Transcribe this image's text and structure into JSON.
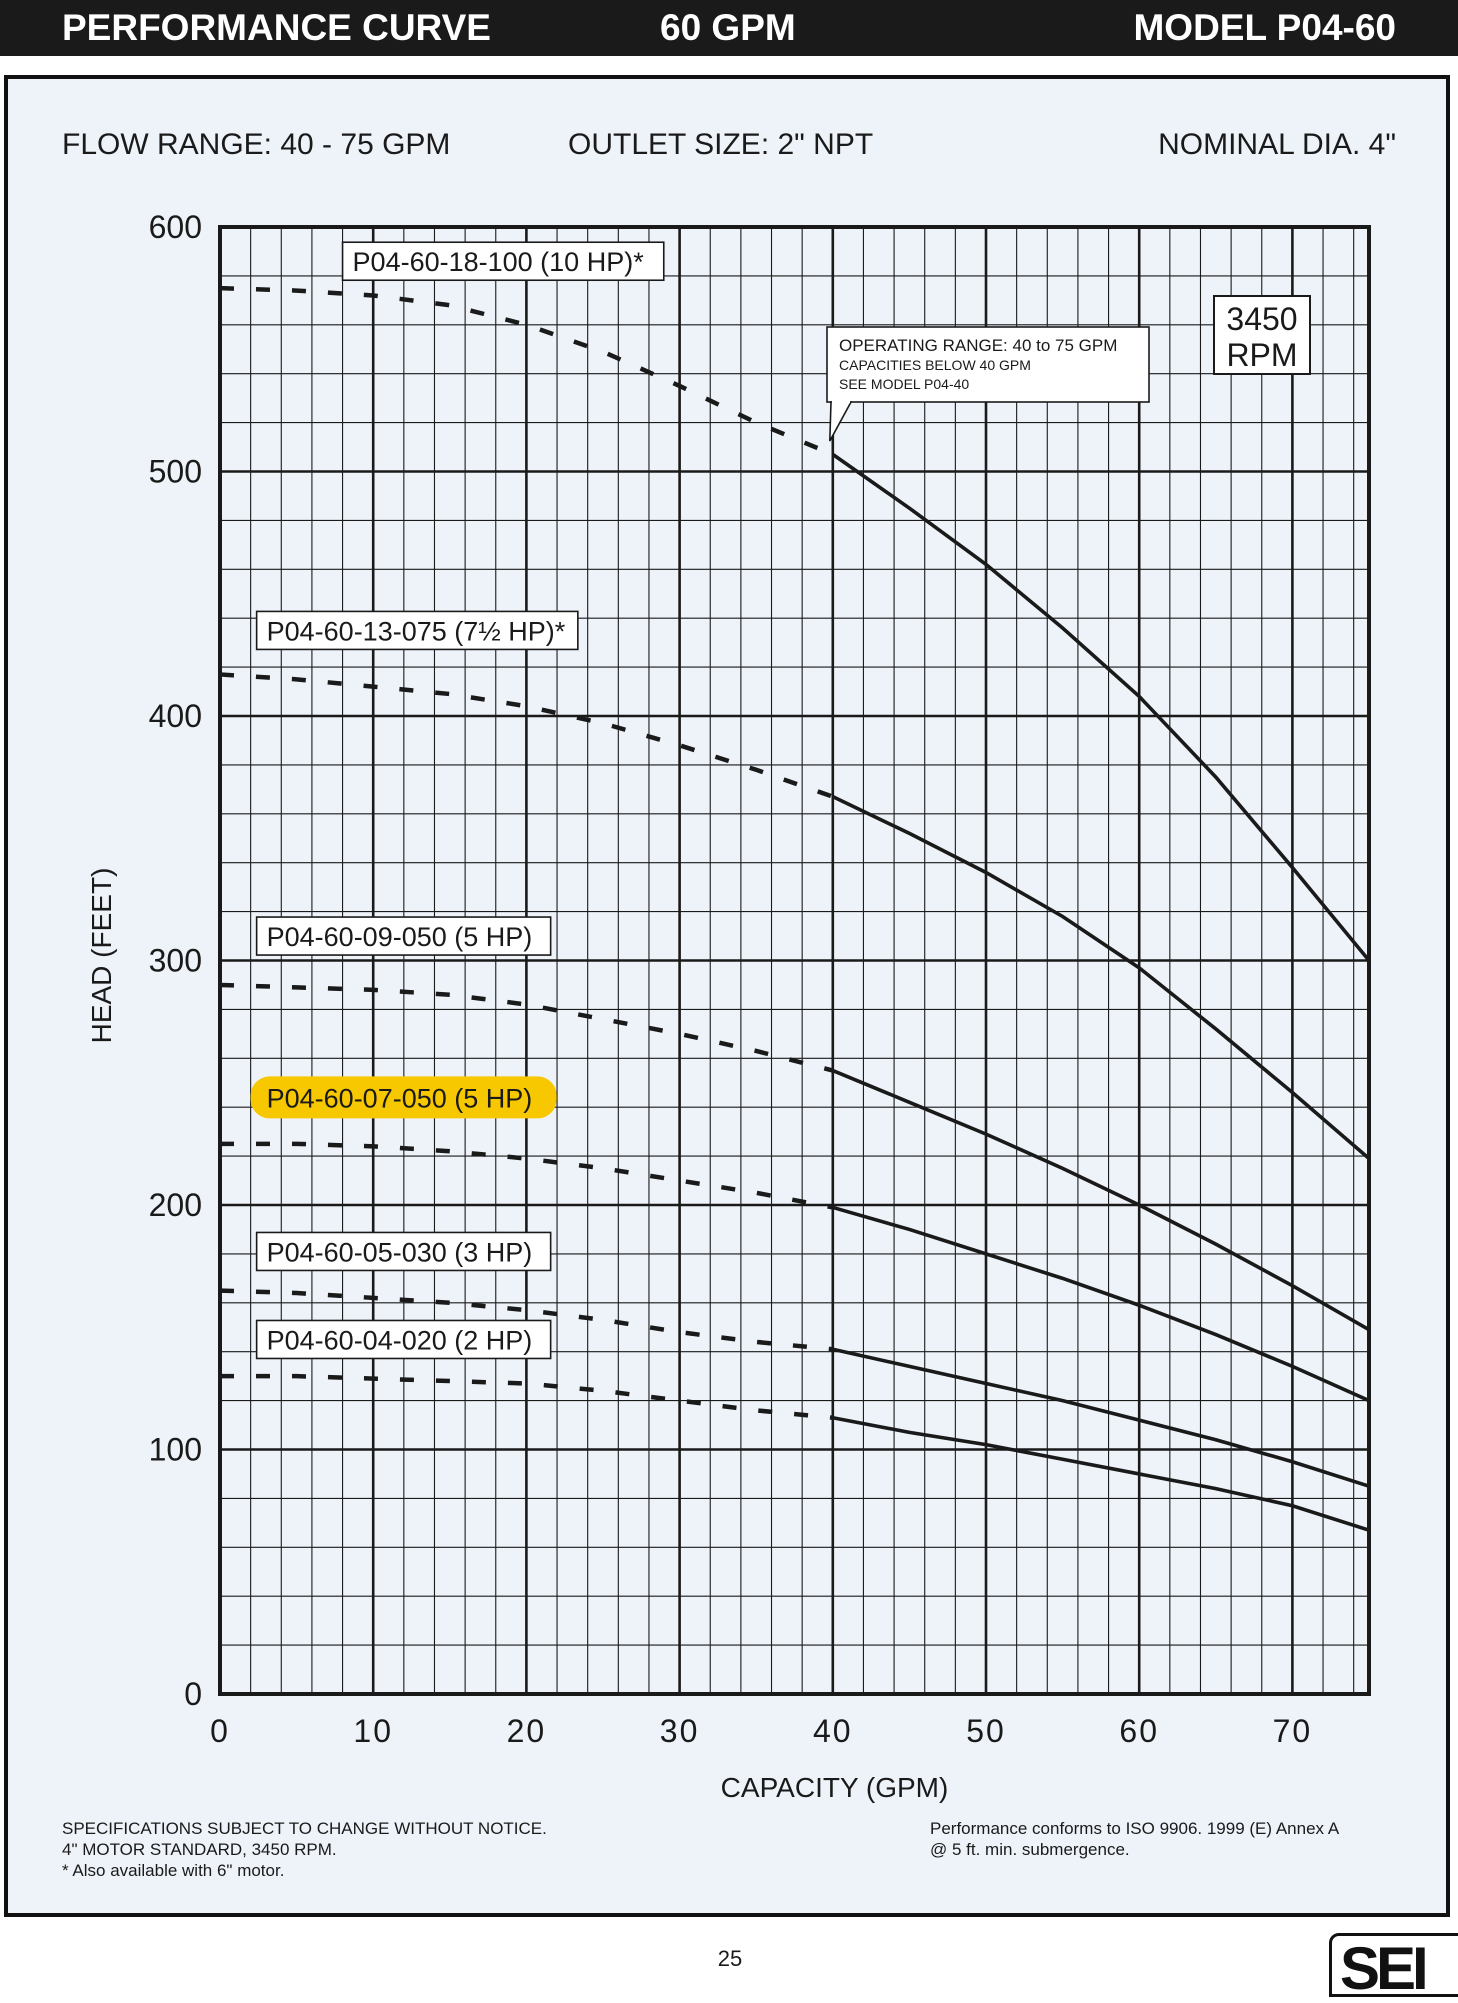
{
  "header": {
    "left": "PERFORMANCE CURVE",
    "center": "60 GPM",
    "right": "MODEL  P04-60"
  },
  "info": {
    "flow_range": "FLOW RANGE: 40 - 75 GPM",
    "outlet": "OUTLET SIZE: 2\" NPT",
    "diameter": "NOMINAL DIA. 4\""
  },
  "colors": {
    "header_bg": "#1a1a1a",
    "panel_bg": "#edf3f9",
    "line": "#1a1a1a",
    "highlight": "#f7c800"
  },
  "chart_data": {
    "type": "line",
    "xlabel": "CAPACITY (GPM)",
    "ylabel": "HEAD (FEET)",
    "xlim": [
      0,
      75
    ],
    "ylim": [
      0,
      600
    ],
    "x_ticks": [
      0,
      10,
      20,
      30,
      40,
      50,
      60,
      70
    ],
    "y_ticks": [
      0,
      100,
      200,
      300,
      400,
      500,
      600
    ],
    "x_tick_labels": [
      "0",
      "10",
      "20",
      "30",
      "40",
      "50",
      "60",
      "70"
    ],
    "y_tick_labels": [
      "0",
      "100",
      "200",
      "300",
      "400",
      "500",
      "600"
    ],
    "grid": true,
    "rpm_box": [
      "3450",
      "RPM"
    ],
    "annotation": {
      "lines": [
        "OPERATING RANGE: 40 to 75 GPM",
        "CAPACITIES BELOW 40 GPM",
        "SEE MODEL P04-40"
      ],
      "points_to": [
        40,
        510
      ]
    },
    "operating_range_start": 40,
    "series": [
      {
        "name": "P04-60-18-100 (10 HP)*",
        "highlighted": false,
        "label_anchor": [
          8,
          586
        ],
        "x": [
          0,
          5,
          10,
          15,
          20,
          25,
          30,
          35,
          40,
          45,
          50,
          55,
          60,
          65,
          70,
          75
        ],
        "y": [
          575,
          574,
          572,
          568,
          560,
          549,
          535,
          520,
          507,
          485,
          462,
          436,
          408,
          375,
          338,
          300
        ]
      },
      {
        "name": "P04-60-13-075 (7½ HP)*",
        "highlighted": false,
        "label_anchor": [
          2,
          435
        ],
        "x": [
          0,
          5,
          10,
          15,
          20,
          25,
          30,
          35,
          40,
          45,
          50,
          55,
          60,
          65,
          70,
          75
        ],
        "y": [
          417,
          415,
          412,
          409,
          404,
          397,
          388,
          378,
          367,
          352,
          336,
          318,
          297,
          272,
          246,
          219
        ]
      },
      {
        "name": "P04-60-09-050 (5 HP)",
        "highlighted": false,
        "label_anchor": [
          2,
          310
        ],
        "x": [
          0,
          5,
          10,
          15,
          20,
          25,
          30,
          35,
          40,
          45,
          50,
          55,
          60,
          65,
          70,
          75
        ],
        "y": [
          290,
          289,
          288,
          286,
          282,
          276,
          270,
          263,
          255,
          242,
          229,
          215,
          200,
          184,
          167,
          149
        ]
      },
      {
        "name": "P04-60-07-050 (5 HP)",
        "highlighted": true,
        "label_anchor": [
          2,
          244
        ],
        "x": [
          0,
          5,
          10,
          15,
          20,
          25,
          30,
          35,
          40,
          45,
          50,
          55,
          60,
          65,
          70,
          75
        ],
        "y": [
          225,
          225,
          224,
          222,
          219,
          215,
          210,
          205,
          199,
          190,
          180,
          170,
          159,
          147,
          134,
          120
        ]
      },
      {
        "name": "P04-60-05-030 (3 HP)",
        "highlighted": false,
        "label_anchor": [
          2,
          181
        ],
        "x": [
          0,
          5,
          10,
          15,
          20,
          25,
          30,
          35,
          40,
          45,
          50,
          55,
          60,
          65,
          70,
          75
        ],
        "y": [
          165,
          164,
          162,
          160,
          157,
          153,
          148,
          144,
          141,
          134,
          127,
          120,
          112,
          104,
          95,
          85
        ]
      },
      {
        "name": "P04-60-04-020 (2 HP)",
        "highlighted": false,
        "label_anchor": [
          2,
          145
        ],
        "x": [
          0,
          5,
          10,
          15,
          20,
          25,
          30,
          35,
          40,
          45,
          50,
          55,
          60,
          65,
          70,
          75
        ],
        "y": [
          130,
          130,
          129,
          128,
          127,
          124,
          120,
          116,
          113,
          107,
          102,
          96,
          90,
          84,
          77,
          67
        ]
      }
    ]
  },
  "footer": {
    "left": [
      "SPECIFICATIONS SUBJECT TO CHANGE WITHOUT NOTICE.",
      "4\" MOTOR STANDARD, 3450 RPM.",
      "* Also available with 6\" motor."
    ],
    "right": [
      "Performance conforms to ISO 9906. 1999 (E) Annex A",
      "@ 5 ft. min. submergence."
    ],
    "page_number": "25",
    "logo": "SEI"
  }
}
